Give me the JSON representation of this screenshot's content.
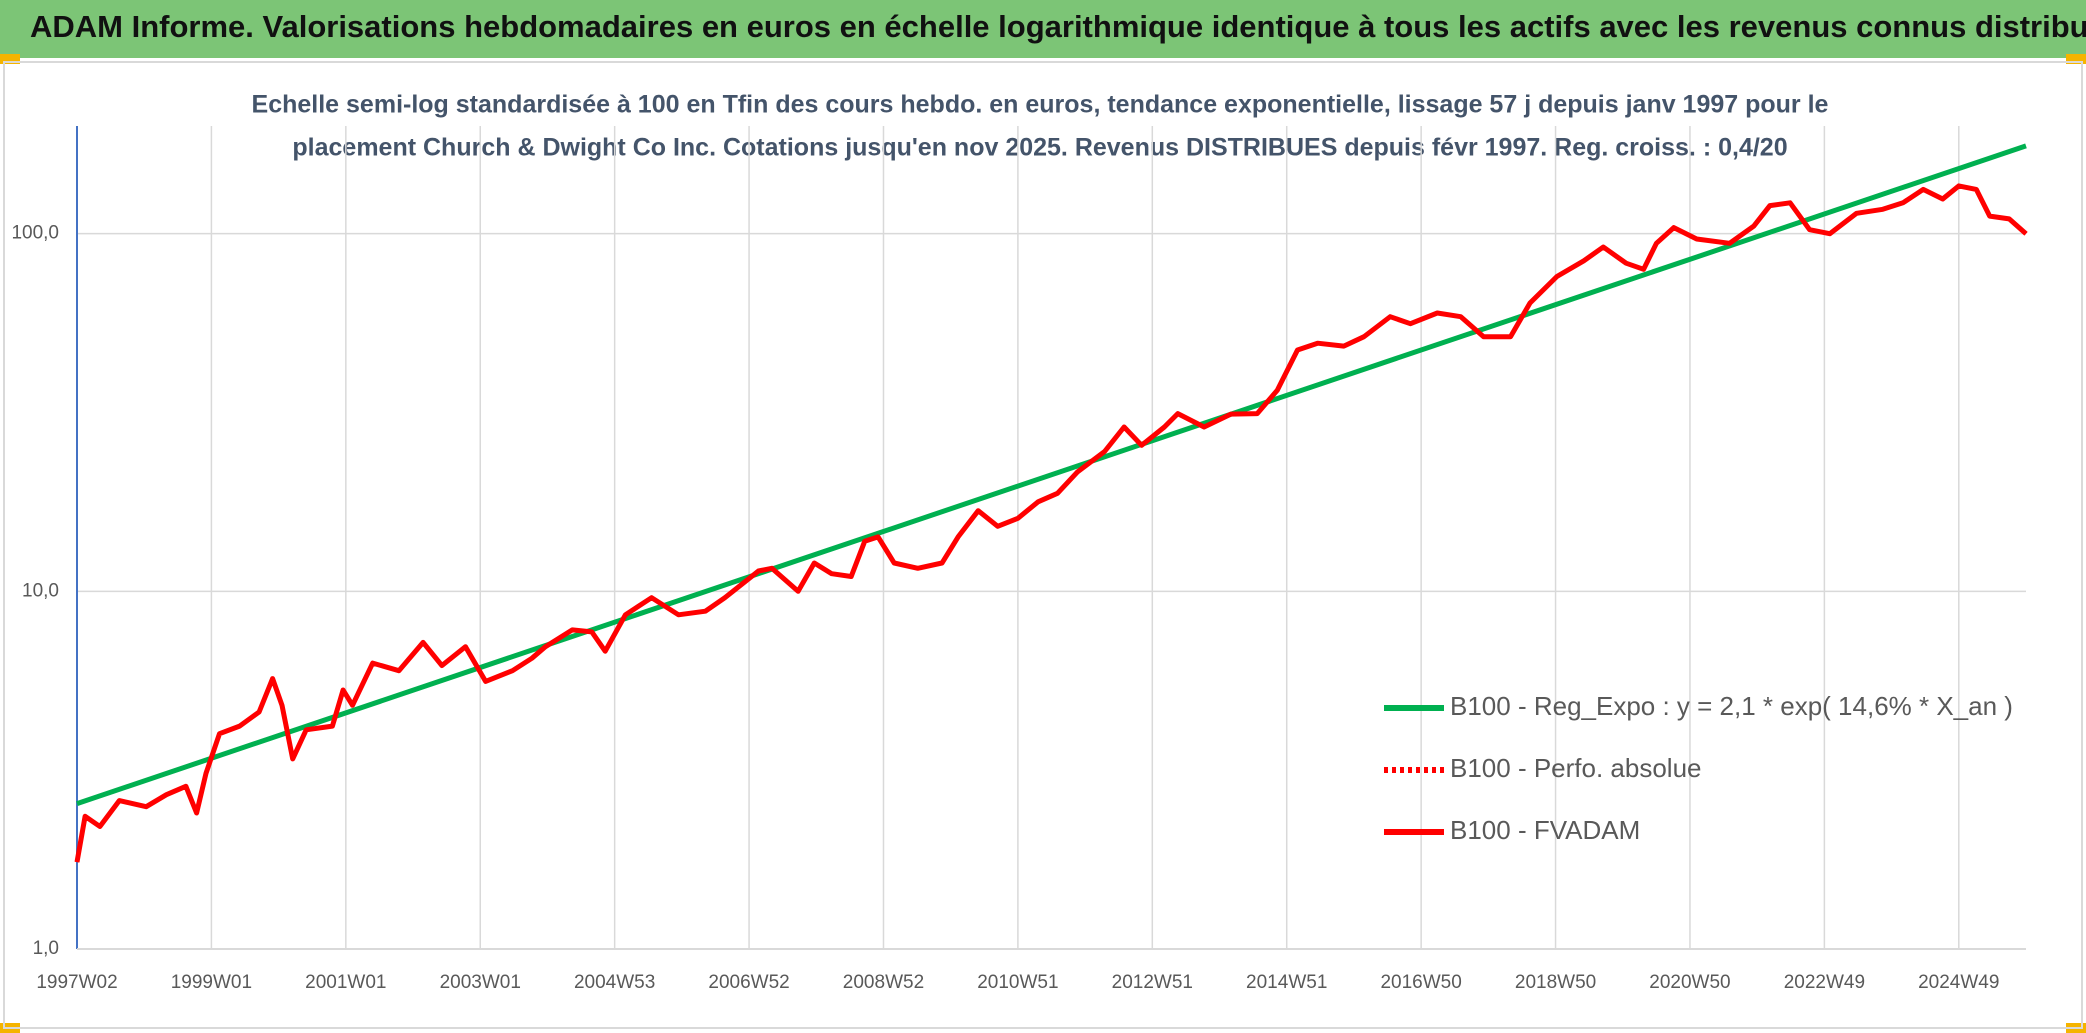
{
  "chart_data": {
    "type": "line",
    "title": "ADAM Informe. Valorisations hebdomadaires en euros en échelle logarithmique identique à tous les actifs avec les revenus connus distribués",
    "subtitle": [
      "Echelle semi-log standardisée à 100 en Tfin des cours hebdo. en euros, tendance exponentielle, lissage 57 j depuis janv 1997 pour le",
      "placement Church & Dwight Co Inc. Cotations jusqu'en nov 2025. Revenus DISTRIBUES depuis févr 1997. Reg. croiss. : 0,4/20"
    ],
    "y_log_scale": true,
    "grid": true,
    "legend_position": "right",
    "xlim": [
      1997.0,
      2026.0
    ],
    "xticks": [
      {
        "value": 1997,
        "label": "1997W02"
      },
      {
        "value": 1999,
        "label": "1999W01"
      },
      {
        "value": 2001,
        "label": "2001W01"
      },
      {
        "value": 2003,
        "label": "2003W01"
      },
      {
        "value": 2005,
        "label": "2004W53"
      },
      {
        "value": 2007,
        "label": "2006W52"
      },
      {
        "value": 2009,
        "label": "2008W52"
      },
      {
        "value": 2011,
        "label": "2010W51"
      },
      {
        "value": 2013,
        "label": "2012W51"
      },
      {
        "value": 2015,
        "label": "2014W51"
      },
      {
        "value": 2017,
        "label": "2016W50"
      },
      {
        "value": 2019,
        "label": "2018W50"
      },
      {
        "value": 2021,
        "label": "2020W50"
      },
      {
        "value": 2023,
        "label": "2022W49"
      },
      {
        "value": 2025,
        "label": "2024W49"
      }
    ],
    "ylim": [
      1,
      200
    ],
    "yticks": [
      {
        "value": 1,
        "label": "1,0"
      },
      {
        "value": 10,
        "label": "10,0"
      },
      {
        "value": 100,
        "label": "100,0"
      }
    ],
    "series": [
      {
        "name": "B100 - Reg_Expo : y = 2,1 * exp( 14,6% *  X_an )",
        "color": "#00b050",
        "style": "solid",
        "x": [
          1997.0,
          2026.0
        ],
        "values": [
          2.55,
          176
        ]
      },
      {
        "name": "B100 - Perfo. absolue",
        "color": "#ff0000",
        "style": "dotted",
        "x": [
          1997.0,
          1997.12,
          1997.34,
          1997.63,
          1998.03,
          1998.33,
          1998.62,
          1998.78,
          1998.92,
          1999.12,
          1999.42,
          1999.71,
          1999.91,
          2000.05,
          2000.21,
          2000.41,
          2000.8,
          2000.96,
          2001.1,
          2001.4,
          2001.79,
          2002.15,
          2002.43,
          2002.78,
          2003.08,
          2003.48,
          2003.77,
          2003.97,
          2004.37,
          2004.66,
          2004.86,
          2005.16,
          2005.55,
          2005.95,
          2006.35,
          2006.64,
          2007.14,
          2007.34,
          2007.73,
          2007.97,
          2008.23,
          2008.52,
          2008.72,
          2008.92,
          2009.16,
          2009.51,
          2009.87,
          2010.11,
          2010.41,
          2010.7,
          2011.0,
          2011.3,
          2011.59,
          2011.89,
          2012.29,
          2012.58,
          2012.84,
          2013.18,
          2013.38,
          2013.77,
          2014.17,
          2014.56,
          2014.86,
          2015.16,
          2015.46,
          2015.85,
          2016.15,
          2016.54,
          2016.84,
          2017.24,
          2017.59,
          2017.93,
          2018.33,
          2018.62,
          2019.02,
          2019.42,
          2019.71,
          2020.05,
          2020.31,
          2020.5,
          2020.76,
          2021.1,
          2021.59,
          2021.95,
          2022.19,
          2022.49,
          2022.78,
          2023.08,
          2023.48,
          2023.87,
          2024.17,
          2024.47,
          2024.76,
          2025.0,
          2025.26,
          2025.46,
          2025.75,
          2026.0
        ],
        "values": [
          1.75,
          2.35,
          2.2,
          2.6,
          2.5,
          2.7,
          2.85,
          2.4,
          3.1,
          4.0,
          4.2,
          4.6,
          5.7,
          4.8,
          3.4,
          4.1,
          4.2,
          5.3,
          4.8,
          6.3,
          6.0,
          7.2,
          6.2,
          7.0,
          5.6,
          6.0,
          6.5,
          7.0,
          7.8,
          7.7,
          6.8,
          8.6,
          9.6,
          8.6,
          8.8,
          9.6,
          11.4,
          11.6,
          10,
          12,
          11.2,
          11,
          13.8,
          14.2,
          12,
          11.6,
          12,
          14.2,
          16.8,
          15.2,
          16,
          17.8,
          18.8,
          21.6,
          24.6,
          28.8,
          25.6,
          28.8,
          31.4,
          28.8,
          31.3,
          31.4,
          36.5,
          47.3,
          49.4,
          48.5,
          51.5,
          58.6,
          56,
          60,
          58.6,
          51.5,
          51.5,
          64,
          75.9,
          84,
          91.8,
          82.7,
          79.5,
          94,
          104,
          96.6,
          94,
          105,
          119.8,
          122,
          102.6,
          100,
          114,
          117,
          122,
          133,
          125,
          136,
          133,
          112,
          110,
          100
        ]
      },
      {
        "name": "B100 - FVADAM",
        "color": "#ff0000",
        "style": "solid",
        "x": [
          1997.0,
          1997.12,
          1997.34,
          1997.63,
          1998.03,
          1998.33,
          1998.62,
          1998.78,
          1998.92,
          1999.12,
          1999.42,
          1999.71,
          1999.91,
          2000.05,
          2000.21,
          2000.41,
          2000.8,
          2000.96,
          2001.1,
          2001.4,
          2001.79,
          2002.15,
          2002.43,
          2002.78,
          2003.08,
          2003.48,
          2003.77,
          2003.97,
          2004.37,
          2004.66,
          2004.86,
          2005.16,
          2005.55,
          2005.95,
          2006.35,
          2006.64,
          2007.14,
          2007.34,
          2007.73,
          2007.97,
          2008.23,
          2008.52,
          2008.72,
          2008.92,
          2009.16,
          2009.51,
          2009.87,
          2010.11,
          2010.41,
          2010.7,
          2011.0,
          2011.3,
          2011.59,
          2011.89,
          2012.29,
          2012.58,
          2012.84,
          2013.18,
          2013.38,
          2013.77,
          2014.17,
          2014.56,
          2014.86,
          2015.16,
          2015.46,
          2015.85,
          2016.15,
          2016.54,
          2016.84,
          2017.24,
          2017.59,
          2017.93,
          2018.33,
          2018.62,
          2019.02,
          2019.42,
          2019.71,
          2020.05,
          2020.31,
          2020.5,
          2020.76,
          2021.1,
          2021.59,
          2021.95,
          2022.19,
          2022.49,
          2022.78,
          2023.08,
          2023.48,
          2023.87,
          2024.17,
          2024.47,
          2024.76,
          2025.0,
          2025.26,
          2025.46,
          2025.75,
          2026.0
        ],
        "values": [
          1.75,
          2.35,
          2.2,
          2.6,
          2.5,
          2.7,
          2.85,
          2.4,
          3.1,
          4.0,
          4.2,
          4.6,
          5.7,
          4.8,
          3.4,
          4.1,
          4.2,
          5.3,
          4.8,
          6.3,
          6.0,
          7.2,
          6.2,
          7.0,
          5.6,
          6.0,
          6.5,
          7.0,
          7.8,
          7.7,
          6.8,
          8.6,
          9.6,
          8.6,
          8.8,
          9.6,
          11.4,
          11.6,
          10,
          12,
          11.2,
          11,
          13.8,
          14.2,
          12,
          11.6,
          12,
          14.2,
          16.8,
          15.2,
          16,
          17.8,
          18.8,
          21.6,
          24.6,
          28.8,
          25.6,
          28.8,
          31.4,
          28.8,
          31.3,
          31.4,
          36.5,
          47.3,
          49.4,
          48.5,
          51.5,
          58.6,
          56,
          60,
          58.6,
          51.5,
          51.5,
          64,
          75.9,
          84,
          91.8,
          82.7,
          79.5,
          94,
          104,
          96.6,
          94,
          105,
          119.8,
          122,
          102.6,
          100,
          114,
          117,
          122,
          133,
          125,
          136,
          133,
          112,
          110,
          100
        ]
      }
    ]
  }
}
